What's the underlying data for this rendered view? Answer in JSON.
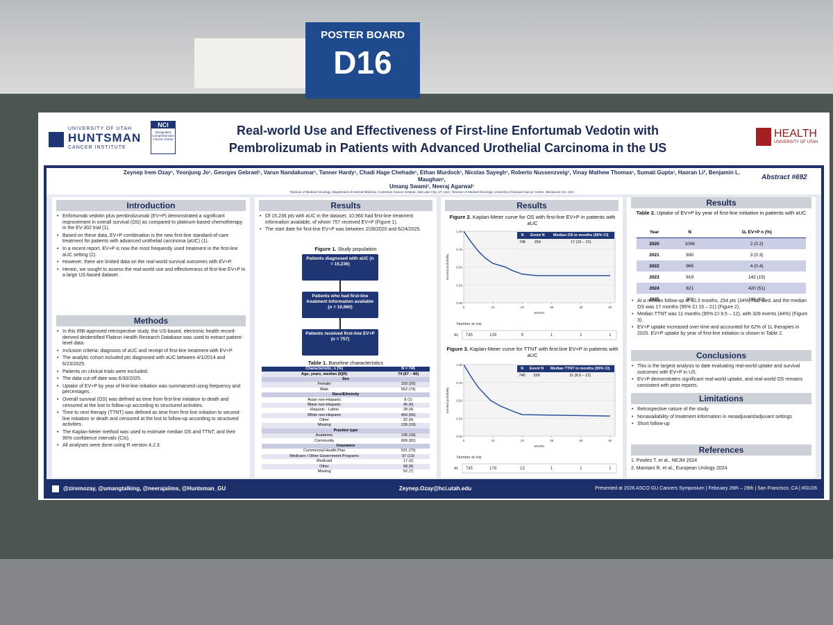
{
  "board": {
    "label": "POSTER BOARD",
    "number": "D16"
  },
  "header": {
    "university": "UNIVERSITY OF UTAH",
    "institute_name": "HUNTSMAN",
    "institute_sub": "CANCER INSTITUTE",
    "nci": "NCI",
    "nci_sub": "Designated Comprehensive Cancer Center",
    "title": [
      "Real-world Use and Effectiveness of First-line Enfortumab Vedotin with",
      "Pembrolizumab in Patients with Advanced Urothelial Carcinoma in the US"
    ],
    "health": "HEALTH",
    "health_sub": "UNIVERSITY OF UTAH",
    "authors": [
      "Zeynep Irem Ozay¹, Yeonjung Jo¹, Georges Gebrael¹, Varun Nandakumar¹, Tanner Hardy¹, Chadi Hage Chehade¹, Ethan Murdock¹, Nicolas Sayegh¹, Roberto Nussenzveig¹, Vinay Mathew Thomas¹, Sumati Gupta¹, Haoran Li², Benjamin L. Maughan¹,",
      "Umang Swami¹, Neeraj Agarwal¹"
    ],
    "affiliations": "¹Division of Medical Oncology, Department of Internal Medicine, Huntsman Cancer Institute, Salt Lake City, UT, USA; ²Division of Medical Oncology, University of Kansas Cancer Center, Westwood, KS, USA",
    "abstract": "Abstract #692"
  },
  "introduction": {
    "heading": "Introduction",
    "bullets": [
      "Enfortumab vedotin plus pembrolizumab (EV+P) demonstrated a significant improvement in overall survival (OS) as compared to platinum-based chemotherapy in the EV-302 trial (1).",
      "Based on these data, EV+P combination is the new first-line standard-of-care treatment for patients with advanced urothelial carcinoma (aUC) (1).",
      "In a recent report, EV+P is now the most frequently used treatment in the first-line aUC setting (2).",
      "However, there are limited data on the real-world survival outcomes with EV+P.",
      "Herein, we sought to assess the real-world use and effectiveness of first-line EV+P in a large US-based dataset."
    ]
  },
  "methods": {
    "heading": "Methods",
    "bullets": [
      "In this IRB-approved retrospective study, the US-based, electronic health record-derived deidentified Flatiron Health Research Database was used to extract patient-level data.",
      "Inclusion criteria: diagnosis of aUC and receipt of first-line treatment with EV+P.",
      "The analytic cohort included pts diagnosed with aUC between 4/1/2014 and 6/23/2025.",
      "Patients on clinical trials were excluded.",
      "The data cut-off date was 6/30/2025.",
      "Uptake of EV+P by year of first-line initiation was summarized using frequency and percentages.",
      "Overall survival (OS) was defined as time from first-line initiation to death and censored at the lost to follow-up according to structured activities.",
      "Time to next therapy (TTNT) was defined as time from first-line initiation to second-line initiation or death and censored at the lost to follow-up according to structured activities.",
      "The Kaplan-Meier method was used to estimate median OS and TTNT, and their 95% confidence intervals (CIs).",
      "All analyses were done using R version 4.2.3."
    ]
  },
  "results_text": {
    "heading": "Results",
    "bullets": [
      "Of 15,236 pts with aUC in the dataset, 10,960 had first-line treatment information available, of whom 757 received EV+P (Figure 1).",
      "The start date for first-line EV+P was between 2/28/2020 and 6/24/2025."
    ]
  },
  "figure1": {
    "caption_label": "Figure 1.",
    "caption": "Study population",
    "boxes": [
      "Patients diagnosed with aUC (n = 15,236)",
      "Patients who had first-line treatment information available (n = 10,960)",
      "Patients received first-line EV+P (n = 757)"
    ]
  },
  "table1": {
    "caption_label": "Table 1.",
    "caption": "Baseline characteristics",
    "columns": [
      "Characteristic, n (%)",
      "N = 745"
    ],
    "rows": [
      [
        "Age, years, median (IQR)",
        "74 (67 – 80)"
      ],
      [
        "Sex"
      ],
      [
        "Female",
        "193 (26)"
      ],
      [
        "Male",
        "552 (74)"
      ],
      [
        "Race/Ethnicity"
      ],
      [
        "Asian non-Hispanic",
        "8 (1)"
      ],
      [
        "Black non-Hispanic",
        "45 (6)"
      ],
      [
        "Hispanic - Latino",
        "28 (4)"
      ],
      [
        "White non-Hispanic",
        "493 (66)"
      ],
      [
        "Other",
        "32 (4)"
      ],
      [
        "Missing",
        "139 (19)"
      ],
      [
        "Practice type"
      ],
      [
        "Academic",
        "136 (18)"
      ],
      [
        "Community",
        "609 (82)"
      ],
      [
        "Insurance"
      ],
      [
        "Commercial Health Plan",
        "521 (70)"
      ],
      [
        "Medicare / Other Government Programs",
        "97 (13)"
      ],
      [
        "Medicaid",
        "17 (2)"
      ],
      [
        "Other",
        "58 (8)"
      ],
      [
        "Missing",
        "52 (7)"
      ]
    ]
  },
  "results_figures": {
    "heading": "Results"
  },
  "figure2": {
    "caption_label": "Figure 2.",
    "caption": "Kaplan-Meier curve for OS with first-line EV+P in patients with aUC",
    "chart": {
      "type": "line",
      "x": [
        0,
        3,
        6,
        9,
        12,
        17,
        20,
        24,
        30,
        60
      ],
      "values": [
        1,
        0.85,
        0.72,
        0.62,
        0.55,
        0.5,
        0.45,
        0.4,
        0.38,
        0.38
      ],
      "color": "#2a4f9c",
      "xlim": [
        0,
        62
      ],
      "xticks": [
        0,
        12,
        24,
        36,
        48,
        60
      ],
      "ylim": [
        0,
        1
      ],
      "yticks": [
        {
          "value": 0,
          "label": "0.00"
        },
        {
          "value": 0.25,
          "label": "0.25"
        },
        {
          "value": 0.5,
          "label": "0.50"
        },
        {
          "value": 0.75,
          "label": "0.75"
        },
        {
          "value": 1,
          "label": "1.00"
        }
      ],
      "xlabel": "Months",
      "ylabel": "Survival probability"
    },
    "table": {
      "columns": [
        "N",
        "Event N",
        "Median OS in months (95% CI)"
      ],
      "row": [
        745,
        254,
        "17 (15 – 21)"
      ]
    },
    "risk": {
      "title": "Number at risk",
      "group": "All",
      "values": [
        745,
        139,
        9,
        1,
        1,
        1
      ]
    }
  },
  "figure3": {
    "caption_label": "Figure 3.",
    "caption": "Kaplan-Meier curve for TTNT with first-line EV+P in patients with aUC",
    "chart": {
      "type": "line",
      "x": [
        0,
        3,
        6,
        9,
        11,
        15,
        20,
        24,
        60
      ],
      "values": [
        1,
        0.83,
        0.68,
        0.57,
        0.5,
        0.42,
        0.35,
        0.3,
        0.28
      ],
      "color": "#2a4f9c",
      "xlim": [
        0,
        62
      ],
      "xticks": [
        0,
        12,
        24,
        36,
        48,
        60
      ],
      "ylim": [
        0,
        1
      ],
      "yticks": [
        {
          "value": 0,
          "label": "0.00"
        },
        {
          "value": 0.25,
          "label": "0.25"
        },
        {
          "value": 0.5,
          "label": "0.50"
        },
        {
          "value": 0.75,
          "label": "0.75"
        },
        {
          "value": 1,
          "label": "1.00"
        }
      ],
      "xlabel": "Months",
      "ylabel": "Survival probability"
    },
    "table": {
      "columns": [
        "N",
        "Event N",
        "Median TTNT in months (95% CI)"
      ],
      "row": [
        745,
        328,
        "11 (9.5 – 12)"
      ]
    },
    "risk": {
      "title": "Number at risk",
      "group": "All",
      "values": [
        745,
        178,
        13,
        1,
        1,
        1
      ]
    }
  },
  "results_summary": {
    "heading": "Results",
    "bullets": [
      "At a median follow-up of 10.3 months, 254 pts (34%) had died, and the median OS was 17 months (95% CI 15 – 21) (Figure 2).",
      "Median TTNT was 11 months (95% CI 9.5 – 12), with 328 events (44%) (Figure 3).",
      "EV+P uptake increased over time and accounted for 62% of 1L therapies in 2025. EV+P uptake by year of first-line initiation is shown in Table 2."
    ]
  },
  "table2": {
    "caption_label": "Table 2.",
    "caption": "Uptake of EV+P by year of first-line initiation in patients with aUC",
    "columns": [
      "Year",
      "N",
      "1L EV+P n (%)"
    ],
    "rows": [
      [
        2020,
        1006,
        "2 (0.2)"
      ],
      [
        2021,
        930,
        "3 (0.3)"
      ],
      [
        2022,
        965,
        "4 (0.4)"
      ],
      [
        2023,
        919,
        "142 (15)"
      ],
      [
        2024,
        821,
        "420 (51)"
      ],
      [
        2025,
        302,
        "186 (62)"
      ]
    ]
  },
  "conclusions": {
    "heading": "Conclusions",
    "bullets": [
      "This is the largest analysis to date evaluating real-world uptake and survival outcomes with EV+P in US.",
      "EV+P demonstrates significant real-world uptake, and real-world OS remains consistent with prior reports."
    ]
  },
  "limitations": {
    "heading": "Limitations",
    "bullets": [
      "Retrospective nature of the study",
      "Nonavailability of treatment information in neoadjuvant/adjuvant settings",
      "Short follow-up"
    ]
  },
  "references": {
    "heading": "References",
    "items": [
      "1. Powles T. et al., NEJM 2024",
      "2. Mamtani R. et al., European Urology 2024"
    ]
  },
  "footer": {
    "social": "@ziremozay, @umangtalking, @neerajaiims, @Huntsman_GU",
    "email": "Zeynep.Ozay@hci.utah.edu",
    "presented": "Presented at 2026 ASCO GU Cancers Symposium | February 26th – 28th | San Francisco, CA | #GU26"
  }
}
